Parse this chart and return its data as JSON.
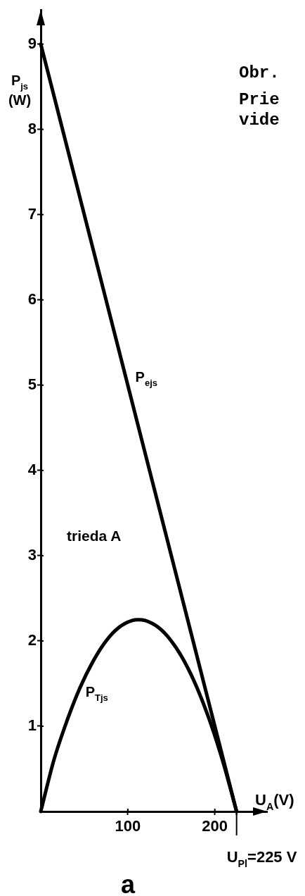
{
  "chart_data": {
    "type": "line",
    "xlabel": "U$_{A}$(V)",
    "ylabel": "P$_{js}$ (W)",
    "xlim": [
      0,
      260
    ],
    "ylim": [
      0,
      9.4
    ],
    "xticks": [
      100,
      200,
      {
        "value": 225,
        "label": null
      }
    ],
    "yticks": [
      1,
      2,
      3,
      4,
      5,
      6,
      7,
      8,
      9
    ],
    "marker": "none",
    "line_style": "solid",
    "series": [
      {
        "name": "P$_{ejs}$",
        "color": "#000000",
        "x": [
          0,
          225
        ],
        "values": [
          9,
          0
        ]
      },
      {
        "name": "P$_{Tjs}$",
        "color": "#000000",
        "x": [
          0,
          15,
          30,
          45,
          60,
          75,
          90,
          105,
          112,
          120,
          135,
          150,
          165,
          180,
          195,
          210,
          225
        ],
        "values": [
          0,
          0.6,
          1.06,
          1.45,
          1.76,
          2,
          2.16,
          2.24,
          2.25,
          2.24,
          2.16,
          2,
          1.76,
          1.44,
          1.04,
          0.56,
          0
        ]
      }
    ],
    "annotations": [
      "Obr.",
      "Prie",
      "vide",
      "trieda A",
      {
        "text": "U$_{Pl}$=225 V",
        "x": 225,
        "y": 0
      },
      "a"
    ]
  }
}
